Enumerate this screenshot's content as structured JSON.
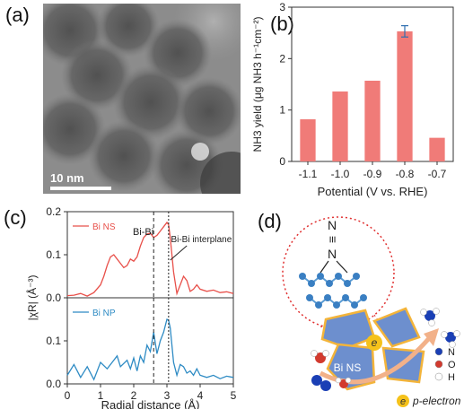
{
  "panels": {
    "a": "(a)",
    "b": "(b)",
    "c": "(c)",
    "d": "(d)"
  },
  "tem": {
    "scale_label": "10 nm"
  },
  "chart_data": [
    {
      "panel": "b",
      "type": "bar",
      "categories": [
        "-1.1",
        "-1.0",
        "-0.9",
        "-0.8",
        "-0.7"
      ],
      "values": [
        0.82,
        1.36,
        1.57,
        2.53,
        0.46
      ],
      "error": [
        0,
        0,
        0,
        0.11,
        0
      ],
      "xlabel": "Potential (V vs. RHE)",
      "ylabel": "NH3 yield (μg NH3 h⁻¹cm⁻²)",
      "ylim": [
        0,
        3
      ],
      "yticks": [
        "0",
        "1",
        "2",
        "3"
      ],
      "bar_color": "#f07b78"
    },
    {
      "panel": "c",
      "type": "line",
      "xlabel": "Radial distance (Å)",
      "ylabel": "|χR| (Å⁻³)",
      "xlim": [
        0,
        5
      ],
      "xticks": [
        "0",
        "1",
        "2",
        "3",
        "4",
        "5"
      ],
      "annotations": [
        "Bi-Bi",
        "Bi-Bi interplane"
      ],
      "series": [
        {
          "name": "Bi NS",
          "color": "#e8504a",
          "ylim": [
            0,
            0.2
          ],
          "yticks": [
            "0.0",
            "0.1",
            "0.2"
          ],
          "x": [
            0,
            0.2,
            0.4,
            0.6,
            0.8,
            1.0,
            1.1,
            1.2,
            1.3,
            1.4,
            1.5,
            1.6,
            1.7,
            1.8,
            1.9,
            2.0,
            2.1,
            2.2,
            2.3,
            2.4,
            2.5,
            2.6,
            2.7,
            2.8,
            2.9,
            3.0,
            3.05,
            3.1,
            3.2,
            3.3,
            3.4,
            3.5,
            3.6,
            3.7,
            3.8,
            3.9,
            4.0,
            4.2,
            4.4,
            4.6,
            4.8,
            5.0
          ],
          "y": [
            0.005,
            0.006,
            0.01,
            0.004,
            0.012,
            0.03,
            0.05,
            0.075,
            0.095,
            0.1,
            0.09,
            0.08,
            0.07,
            0.075,
            0.09,
            0.085,
            0.095,
            0.12,
            0.14,
            0.148,
            0.15,
            0.14,
            0.145,
            0.155,
            0.165,
            0.175,
            0.17,
            0.14,
            0.06,
            0.01,
            0.03,
            0.05,
            0.04,
            0.015,
            0.02,
            0.03,
            0.02,
            0.015,
            0.018,
            0.012,
            0.014,
            0.01
          ]
        },
        {
          "name": "Bi NP",
          "color": "#2e8bc4",
          "ylim": [
            0,
            0.2
          ],
          "yticks": [
            "0.0",
            "0.1"
          ],
          "x": [
            0,
            0.2,
            0.4,
            0.6,
            0.8,
            1.0,
            1.2,
            1.4,
            1.5,
            1.6,
            1.8,
            1.9,
            2.0,
            2.1,
            2.2,
            2.3,
            2.4,
            2.5,
            2.6,
            2.7,
            2.8,
            2.9,
            3.0,
            3.05,
            3.1,
            3.2,
            3.3,
            3.4,
            3.5,
            3.6,
            3.7,
            3.8,
            3.9,
            4.0,
            4.2,
            4.4,
            4.6,
            4.8,
            5.0
          ],
          "y": [
            0.02,
            0.045,
            0.015,
            0.04,
            0.01,
            0.05,
            0.035,
            0.055,
            0.065,
            0.04,
            0.055,
            0.035,
            0.06,
            0.03,
            0.065,
            0.05,
            0.09,
            0.075,
            0.12,
            0.07,
            0.1,
            0.12,
            0.15,
            0.148,
            0.13,
            0.05,
            0.02,
            0.045,
            0.04,
            0.025,
            0.03,
            0.02,
            0.035,
            0.02,
            0.015,
            0.02,
            0.012,
            0.018,
            0.015
          ]
        }
      ]
    }
  ],
  "schematic": {
    "n2_top": "N",
    "n2_bottom": "N",
    "triple_bond": "≡",
    "electron": "e",
    "sheet_label": "Bi NS",
    "legend": [
      {
        "symbol": "N",
        "label": "N",
        "color": "#1a3fb5"
      },
      {
        "symbol": "O",
        "label": "O",
        "color": "#d23a2e"
      },
      {
        "symbol": "H",
        "label": "H",
        "color": "#ffffff"
      }
    ],
    "pe_label": "p-electron"
  }
}
